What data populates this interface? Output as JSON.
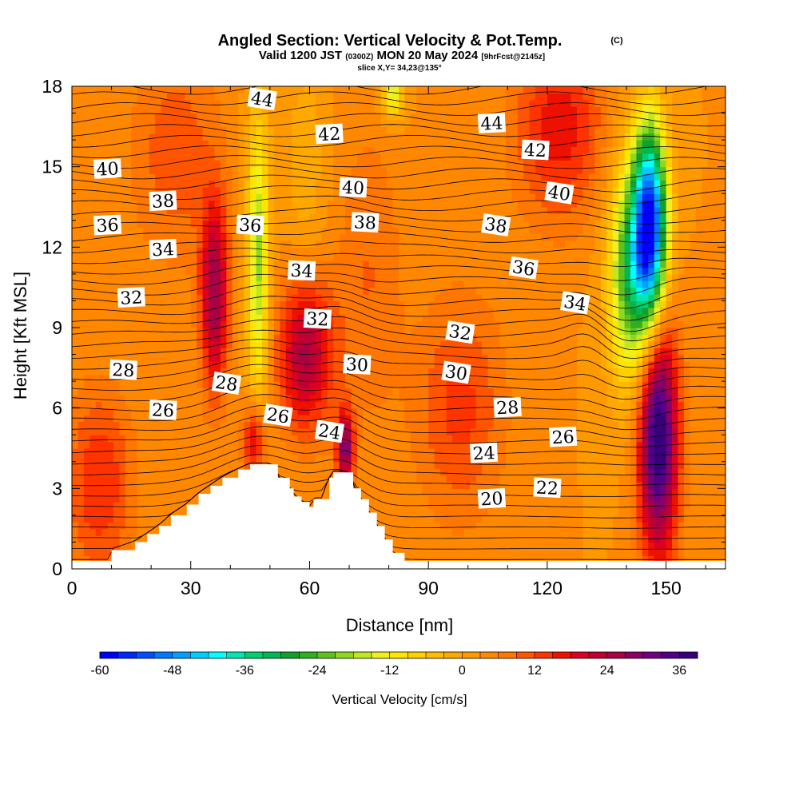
{
  "title": {
    "main": "Angled Section: Vertical Velocity & Pot.Temp.",
    "copyright": "(C)",
    "valid_prefix": "Valid 1200 JST",
    "valid_utc": "(0300Z)",
    "valid_date": "MON 20 May 2024",
    "forecast": "[9hrFcst@2145z]",
    "slice": "slice X,Y= 34,23@135°"
  },
  "chart_data": {
    "type": "heatmap",
    "xlabel": "Distance [nm]",
    "ylabel": "Height [Kft MSL]",
    "xlim": [
      0,
      165
    ],
    "ylim": [
      0,
      18
    ],
    "x_ticks": [
      "0",
      "30",
      "60",
      "90",
      "120",
      "150"
    ],
    "y_ticks": [
      "0",
      "3",
      "6",
      "9",
      "12",
      "15",
      "18"
    ],
    "colorbar": {
      "label": "Vertical Velocity [cm/s]",
      "min": -60,
      "max": 39,
      "step": 3,
      "tick_labels": [
        "-60",
        "-48",
        "-36",
        "-24",
        "-12",
        "0",
        "12",
        "24",
        "36"
      ],
      "colors": [
        "#0000ff",
        "#0028ff",
        "#0050ff",
        "#0078ff",
        "#00a0ff",
        "#00ccff",
        "#00ffff",
        "#00e8b0",
        "#00d070",
        "#00b850",
        "#10a030",
        "#30b020",
        "#60c020",
        "#90d820",
        "#c0e820",
        "#f0f020",
        "#ffe600",
        "#ffd000",
        "#ffbb00",
        "#ffa800",
        "#ff9900",
        "#ff8800",
        "#ff7700",
        "#ff5500",
        "#ff3300",
        "#ee1100",
        "#dd0022",
        "#c00033",
        "#aa0044",
        "#8a0066",
        "#700080",
        "#50008a",
        "#38007a"
      ]
    },
    "isentrope_labels": [
      {
        "value": "20",
        "x": 106,
        "h": 2.6
      },
      {
        "value": "22",
        "x": 120,
        "h": 3.0
      },
      {
        "value": "24",
        "x": 65,
        "h": 5.1
      },
      {
        "value": "24",
        "x": 104,
        "h": 4.3
      },
      {
        "value": "26",
        "x": 23,
        "h": 5.9
      },
      {
        "value": "26",
        "x": 52,
        "h": 5.7
      },
      {
        "value": "26",
        "x": 124,
        "h": 4.9
      },
      {
        "value": "28",
        "x": 13,
        "h": 7.4
      },
      {
        "value": "28",
        "x": 39,
        "h": 6.9
      },
      {
        "value": "28",
        "x": 110,
        "h": 6.0
      },
      {
        "value": "30",
        "x": 72,
        "h": 7.6
      },
      {
        "value": "30",
        "x": 97,
        "h": 7.3
      },
      {
        "value": "32",
        "x": 15,
        "h": 10.1
      },
      {
        "value": "32",
        "x": 62,
        "h": 9.3
      },
      {
        "value": "32",
        "x": 98,
        "h": 8.8
      },
      {
        "value": "34",
        "x": 23,
        "h": 11.9
      },
      {
        "value": "34",
        "x": 58,
        "h": 11.1
      },
      {
        "value": "34",
        "x": 127,
        "h": 9.9
      },
      {
        "value": "36",
        "x": 9,
        "h": 12.8
      },
      {
        "value": "36",
        "x": 45,
        "h": 12.8
      },
      {
        "value": "36",
        "x": 114,
        "h": 11.2
      },
      {
        "value": "38",
        "x": 23,
        "h": 13.7
      },
      {
        "value": "38",
        "x": 74,
        "h": 12.9
      },
      {
        "value": "38",
        "x": 107,
        "h": 12.8
      },
      {
        "value": "40",
        "x": 9,
        "h": 14.9
      },
      {
        "value": "40",
        "x": 71,
        "h": 14.2
      },
      {
        "value": "40",
        "x": 123,
        "h": 14.0
      },
      {
        "value": "42",
        "x": 65,
        "h": 16.2
      },
      {
        "value": "42",
        "x": 117,
        "h": 15.6
      },
      {
        "value": "44",
        "x": 48,
        "h": 17.5
      },
      {
        "value": "44",
        "x": 106,
        "h": 16.6
      }
    ],
    "terrain": {
      "x": [
        0,
        10,
        10,
        16,
        19,
        22,
        25,
        29,
        32,
        35,
        38,
        42,
        45,
        47,
        50,
        52,
        55,
        56,
        58,
        60,
        61,
        63,
        65,
        66,
        68,
        70,
        71,
        73,
        75,
        77,
        79,
        81,
        84,
        88,
        165
      ],
      "h": [
        0.3,
        0.3,
        0.7,
        1.0,
        1.3,
        1.6,
        2.0,
        2.4,
        2.8,
        3.1,
        3.4,
        3.7,
        3.9,
        3.9,
        3.9,
        3.4,
        3.0,
        2.7,
        2.5,
        2.3,
        2.6,
        2.6,
        3.4,
        3.6,
        3.6,
        3.6,
        3.0,
        2.6,
        2.1,
        1.6,
        1.1,
        0.6,
        0.3,
        0.3,
        0.3
      ]
    },
    "velocity_features": [
      {
        "x": 146,
        "h": 12.8,
        "sx": 3,
        "sh": 2.6,
        "value": -58
      },
      {
        "x": 141,
        "h": 11.0,
        "sx": 4,
        "sh": 3.0,
        "value": -28
      },
      {
        "x": 47,
        "h": 11.5,
        "sx": 2,
        "sh": 4.0,
        "value": -22
      },
      {
        "x": 81,
        "h": 17.8,
        "sx": 2,
        "sh": 0.7,
        "value": -18
      },
      {
        "x": 148,
        "h": 5.0,
        "sx": 3.5,
        "sh": 3.2,
        "value": 38
      },
      {
        "x": 36,
        "h": 10.2,
        "sx": 2.5,
        "sh": 2.5,
        "value": 24
      },
      {
        "x": 59,
        "h": 8.0,
        "sx": 5,
        "sh": 2.0,
        "value": 22
      },
      {
        "x": 69,
        "h": 4.5,
        "sx": 1.5,
        "sh": 1.0,
        "value": 26
      },
      {
        "x": 46,
        "h": 4.8,
        "sx": 2,
        "sh": 1.0,
        "value": 18
      },
      {
        "x": 123,
        "h": 16.5,
        "sx": 8,
        "sh": 2.5,
        "value": 14
      },
      {
        "x": 7,
        "h": 3.2,
        "sx": 6,
        "sh": 2.5,
        "value": 12
      },
      {
        "x": 98,
        "h": 6.0,
        "sx": 8,
        "sh": 3.0,
        "value": 10
      },
      {
        "x": 75,
        "h": 11.0,
        "sx": 6,
        "sh": 4.0,
        "value": 6
      },
      {
        "x": 26,
        "h": 15.5,
        "sx": 8,
        "sh": 3.0,
        "value": 8
      },
      {
        "x": 59,
        "h": 15.0,
        "sx": 4,
        "sh": 3.0,
        "value": -5
      }
    ]
  }
}
